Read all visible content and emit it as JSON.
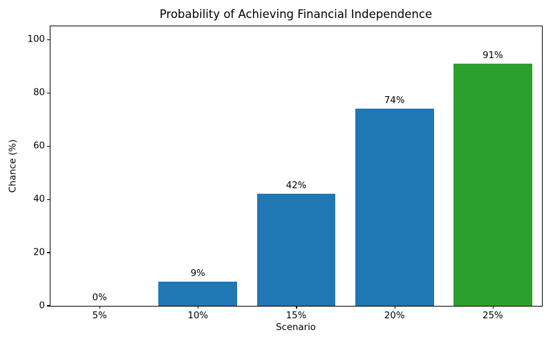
{
  "chart_data": {
    "type": "bar",
    "title": "Probability of Achieving Financial Independence",
    "xlabel": "Scenario",
    "ylabel": "Chance (%)",
    "categories": [
      "5%",
      "10%",
      "15%",
      "20%",
      "25%"
    ],
    "values": [
      0,
      9,
      42,
      74,
      91
    ],
    "bar_labels": [
      "0%",
      "9%",
      "42%",
      "74%",
      "91%"
    ],
    "bar_colors": [
      "#1f77b4",
      "#1f77b4",
      "#1f77b4",
      "#1f77b4",
      "#2ca02c"
    ],
    "ylim": [
      0,
      105
    ],
    "yticks": [
      0,
      20,
      40,
      60,
      80,
      100
    ],
    "grid": false,
    "legend_position": "none",
    "bar_width_fraction": 0.8
  },
  "colors": {
    "bar_blue": "#1f77b4",
    "bar_green": "#2ca02c",
    "axis": "#000000",
    "background": "#ffffff",
    "text": "#000000"
  }
}
